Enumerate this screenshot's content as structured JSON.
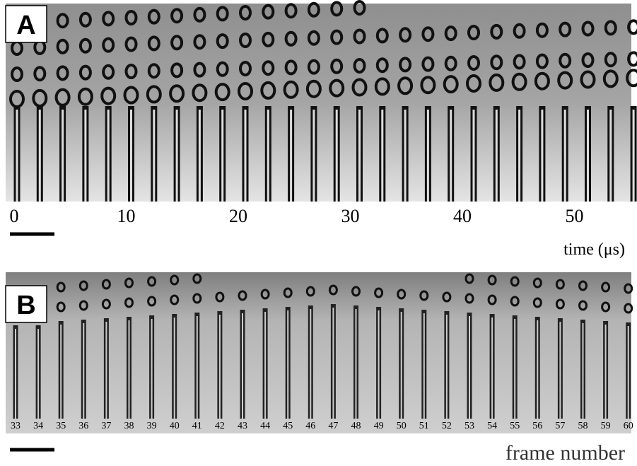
{
  "panel_a": {
    "label": "A",
    "ticks": [
      "0",
      "10",
      "20",
      "30",
      "40",
      "50"
    ],
    "axis_label": "time (μs)"
  },
  "panel_b": {
    "label": "B",
    "frames": [
      33,
      34,
      35,
      36,
      37,
      38,
      39,
      40,
      41,
      42,
      43,
      44,
      45,
      46,
      47,
      48,
      49,
      50,
      51,
      52,
      53,
      54,
      55,
      56,
      57,
      58,
      59,
      60
    ],
    "axis_label": "frame number"
  }
}
